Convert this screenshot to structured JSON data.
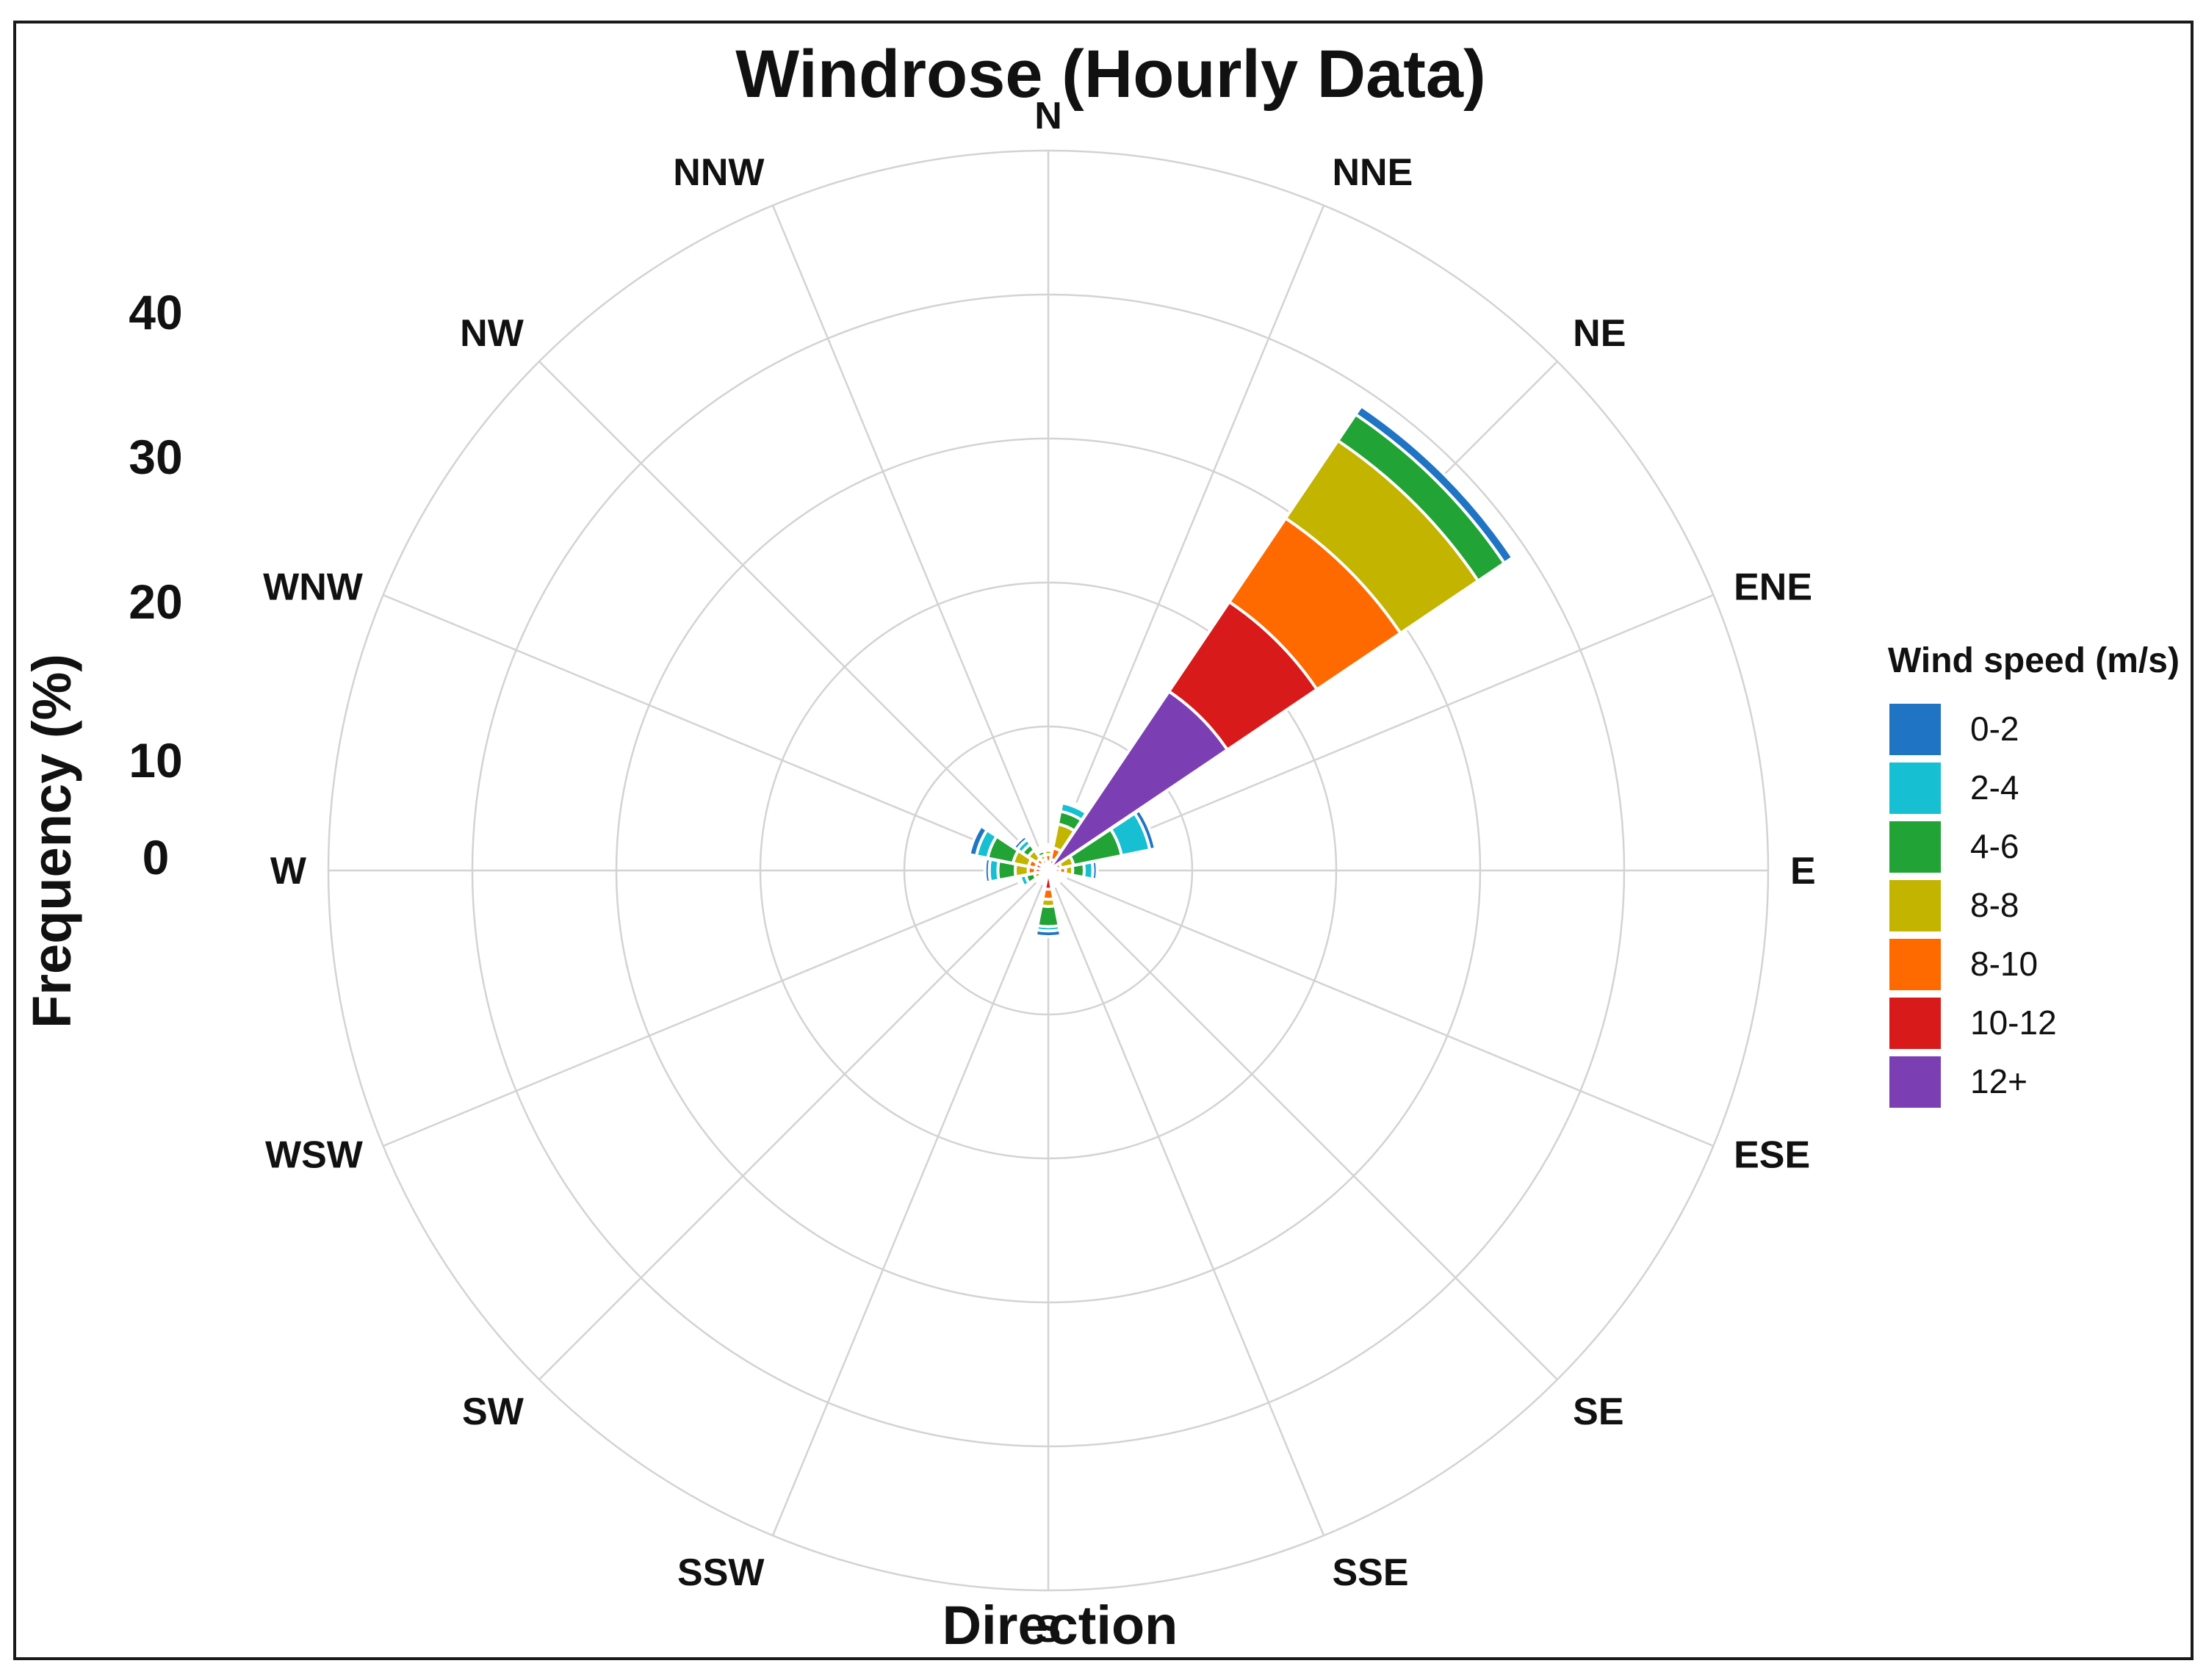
{
  "chart_data": {
    "type": "windrose",
    "title": "Windrose (Hourly Data)",
    "xlabel": "Direction",
    "ylabel": "Frequency (%)",
    "yticks": [
      0,
      10,
      20,
      30,
      40
    ],
    "rlim": [
      0,
      50
    ],
    "grid": true,
    "legend": {
      "title": "Wind speed (m/s)",
      "position": "right"
    },
    "directions": [
      "N",
      "NNE",
      "NE",
      "ENE",
      "E",
      "ESE",
      "SE",
      "SSE",
      "S",
      "SSW",
      "SW",
      "WSW",
      "W",
      "WNW",
      "NW",
      "NNW"
    ],
    "series": [
      {
        "name": "12+",
        "color": "#7b3fb3",
        "values": [
          0.2,
          0.2,
          15,
          0.3,
          0.4,
          0.2,
          0.1,
          0.2,
          0.3,
          0.2,
          0.1,
          0.2,
          0.3,
          0.3,
          0.2,
          0.2
        ]
      },
      {
        "name": "10-12",
        "color": "#d91a1a",
        "values": [
          0.4,
          0.6,
          7.5,
          0.3,
          0.4,
          0.2,
          0.3,
          0.2,
          1.0,
          0.2,
          0.2,
          0.2,
          0.6,
          0.6,
          0.4,
          0.3
        ]
      },
      {
        "name": "8-10",
        "color": "#ff6a00",
        "values": [
          0.5,
          0.8,
          7.0,
          0.3,
          0.4,
          0.2,
          0.2,
          0.1,
          0.7,
          0.1,
          0.1,
          0.2,
          0.5,
          0.5,
          0.4,
          0.3
        ]
      },
      {
        "name": "8-8",
        "color": "#c3b400",
        "values": [
          0.3,
          1.7,
          6.5,
          0.9,
          0.5,
          0.2,
          0.1,
          0.2,
          0.5,
          0.1,
          0.2,
          0.4,
          0.9,
          1.1,
          0.7,
          0.3
        ]
      },
      {
        "name": "4-6",
        "color": "#22a336",
        "values": [
          0.2,
          0.9,
          2.2,
          3.4,
          0.8,
          0.2,
          0.2,
          0.2,
          1.4,
          0.2,
          0.2,
          0.6,
          1.2,
          1.8,
          0.5,
          0.3
        ]
      },
      {
        "name": "2-4",
        "color": "#17bfd3",
        "values": [
          0.1,
          0.6,
          0.0,
          2.0,
          0.6,
          0.2,
          0.1,
          0.2,
          0.3,
          0.1,
          0.2,
          0.4,
          0.6,
          0.8,
          0.4,
          0.2
        ]
      },
      {
        "name": "0-2",
        "color": "#1f74c4",
        "values": [
          0.1,
          0.2,
          0.7,
          0.4,
          0.3,
          0.1,
          0.1,
          0.1,
          0.4,
          0.1,
          0.1,
          0.2,
          0.3,
          0.5,
          0.3,
          0.1
        ]
      }
    ],
    "legend_order": [
      "0-2",
      "2-4",
      "4-6",
      "8-8",
      "8-10",
      "10-12",
      "12+"
    ]
  }
}
